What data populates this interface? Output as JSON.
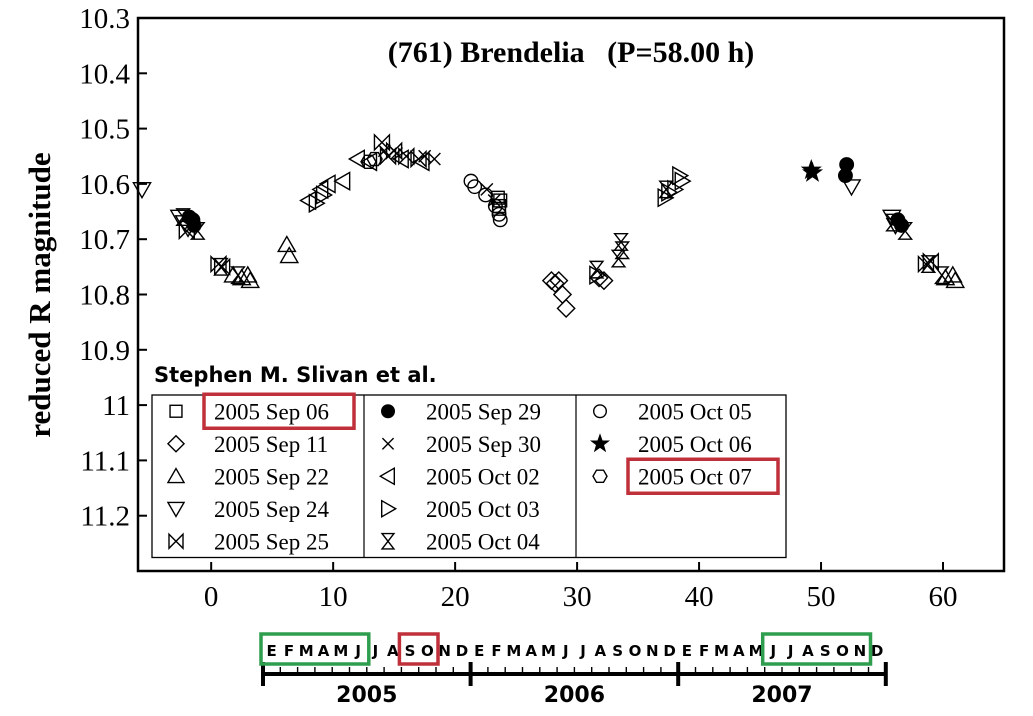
{
  "chart_data": {
    "type": "scatter",
    "title": "(761) Brendelia   (P=58.00 h)",
    "xlabel": "",
    "ylabel": "reduced R magnitude",
    "xlim": [
      -6,
      65
    ],
    "ylim": [
      10.3,
      11.3
    ],
    "y_inverted": true,
    "xticks": [
      0,
      10,
      20,
      30,
      40,
      50,
      60
    ],
    "yticks": [
      10.3,
      10.4,
      10.5,
      10.6,
      10.7,
      10.8,
      10.9,
      11,
      11.1,
      11.2
    ],
    "ytick_labels": [
      "10.3",
      "10.4",
      "10.5",
      "10.6",
      "10.7",
      "10.8",
      "10.9",
      "11",
      "11.1",
      "11.2"
    ],
    "credit": "Stephen M. Slivan et al.",
    "series": [
      {
        "name": "2005 Sep 06",
        "marker": "square",
        "points": [
          [
            23.5,
            10.625
          ],
          [
            23.6,
            10.64
          ],
          [
            23.7,
            10.63
          ],
          [
            23.6,
            10.645
          ]
        ]
      },
      {
        "name": "2005 Sep 11",
        "marker": "diamond",
        "points": [
          [
            27.9,
            10.775
          ],
          [
            28.2,
            10.78
          ],
          [
            28.5,
            10.775
          ],
          [
            28.8,
            10.8
          ],
          [
            29.1,
            10.825
          ],
          [
            31.8,
            10.77
          ],
          [
            32.2,
            10.775
          ]
        ]
      },
      {
        "name": "2005 Sep 22",
        "marker": "triangle-up",
        "points": [
          [
            1.8,
            10.765
          ],
          [
            2.5,
            10.77
          ],
          [
            3.0,
            10.765
          ],
          [
            3.2,
            10.775
          ],
          [
            6.2,
            10.71
          ],
          [
            6.4,
            10.73
          ],
          [
            60.2,
            10.77
          ],
          [
            60.8,
            10.765
          ],
          [
            61.0,
            10.775
          ]
        ]
      },
      {
        "name": "2005 Sep 24",
        "marker": "triangle-down",
        "points": [
          [
            -6.0,
            10.61
          ],
          [
            -2.6,
            10.66
          ],
          [
            -2.2,
            10.67
          ],
          [
            -1.9,
            10.68
          ],
          [
            52.5,
            10.605
          ],
          [
            55.8,
            10.66
          ],
          [
            56.1,
            10.675
          ]
        ]
      },
      {
        "name": "2005 Sep 25",
        "marker": "bowtie",
        "points": [
          [
            -2.0,
            10.685
          ],
          [
            0.6,
            10.745
          ],
          [
            0.9,
            10.75
          ],
          [
            14.0,
            10.525
          ],
          [
            14.5,
            10.55
          ],
          [
            15.0,
            10.54
          ],
          [
            16.0,
            10.55
          ],
          [
            17.0,
            10.555
          ],
          [
            59.0,
            10.74
          ],
          [
            58.6,
            10.745
          ]
        ]
      },
      {
        "name": "2005 Sep 29",
        "marker": "filled-circle",
        "points": [
          [
            -1.8,
            10.66
          ],
          [
            -1.5,
            10.665
          ],
          [
            -1.4,
            10.675
          ],
          [
            52.1,
            10.565
          ],
          [
            52.0,
            10.585
          ],
          [
            56.3,
            10.665
          ],
          [
            56.6,
            10.675
          ]
        ]
      },
      {
        "name": "2005 Sep 30",
        "marker": "x",
        "points": [
          [
            14.2,
            10.54
          ],
          [
            15.2,
            10.545
          ],
          [
            17.5,
            10.55
          ],
          [
            18.3,
            10.555
          ],
          [
            22.6,
            10.61
          ],
          [
            23.2,
            10.63
          ]
        ]
      },
      {
        "name": "2005 Oct 02",
        "marker": "triangle-left",
        "points": [
          [
            8.0,
            10.63
          ],
          [
            9.0,
            10.61
          ],
          [
            9.6,
            10.6
          ],
          [
            10.8,
            10.595
          ],
          [
            12.0,
            10.555
          ],
          [
            13.0,
            10.56
          ],
          [
            15.6,
            10.555
          ],
          [
            17.3,
            10.56
          ]
        ]
      },
      {
        "name": "2005 Oct 03",
        "marker": "triangle-right",
        "points": [
          [
            8.6,
            10.635
          ],
          [
            9.2,
            10.62
          ],
          [
            31.6,
            10.765
          ],
          [
            37.2,
            10.625
          ],
          [
            37.5,
            10.615
          ],
          [
            38.0,
            10.61
          ],
          [
            38.4,
            10.585
          ],
          [
            38.6,
            10.595
          ]
        ]
      },
      {
        "name": "2005 Oct 04",
        "marker": "hourglass",
        "points": [
          [
            -2.3,
            10.66
          ],
          [
            -1.1,
            10.685
          ],
          [
            0.8,
            10.75
          ],
          [
            2.2,
            10.765
          ],
          [
            31.6,
            10.755
          ],
          [
            33.6,
            10.705
          ],
          [
            33.7,
            10.72
          ],
          [
            33.4,
            10.735
          ],
          [
            37.3,
            10.61
          ],
          [
            55.9,
            10.67
          ],
          [
            56.9,
            10.685
          ],
          [
            58.8,
            10.745
          ],
          [
            59.9,
            10.765
          ]
        ]
      },
      {
        "name": "2005 Oct 05",
        "marker": "circle",
        "points": [
          [
            21.3,
            10.595
          ],
          [
            21.6,
            10.605
          ],
          [
            22.5,
            10.62
          ],
          [
            23.3,
            10.64
          ],
          [
            23.6,
            10.655
          ],
          [
            23.7,
            10.665
          ]
        ]
      },
      {
        "name": "2005 Oct 06",
        "marker": "star",
        "points": [
          [
            49.2,
            10.575
          ],
          [
            49.3,
            10.58
          ]
        ]
      },
      {
        "name": "2005 Oct 07",
        "marker": "hexagon",
        "points": [
          [
            12.9,
            10.56
          ],
          [
            13.4,
            10.555
          ]
        ]
      }
    ],
    "highlighted_legend_entries": [
      "2005 Sep 06",
      "2005 Oct 07"
    ]
  },
  "timeline": {
    "months": [
      "E",
      "F",
      "M",
      "A",
      "M",
      "J",
      "J",
      "A",
      "S",
      "O",
      "N",
      "D",
      "E",
      "F",
      "M",
      "A",
      "M",
      "J",
      "J",
      "A",
      "S",
      "O",
      "N",
      "D",
      "E",
      "F",
      "M",
      "A",
      "M",
      "J",
      "J",
      "A",
      "S",
      "O",
      "N",
      "D"
    ],
    "years": [
      "2005",
      "2006",
      "2007"
    ],
    "green_boxes": [
      [
        0,
        5
      ],
      [
        29,
        34
      ]
    ],
    "red_boxes": [
      [
        8,
        9
      ]
    ],
    "colors": {
      "green": "#2e9e4e",
      "red": "#c0303a"
    }
  },
  "colors": {
    "highlight_red": "#c0303a",
    "ink": "#000000"
  }
}
